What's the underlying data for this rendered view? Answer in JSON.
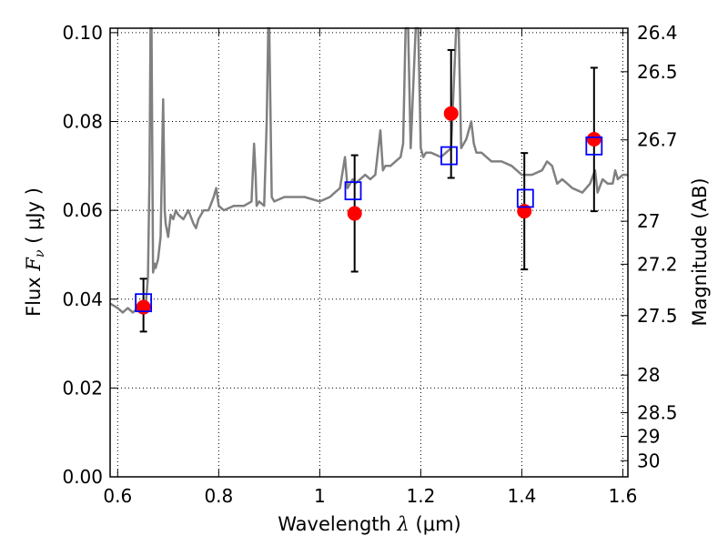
{
  "chart_data": {
    "type": "scatter",
    "title": "",
    "xlabel": {
      "prefix": "Wavelength",
      "symbol": "λ",
      "unit": "(μm)"
    },
    "ylabel": {
      "prefix": "Flux",
      "symbol": "F",
      "subscript": "ν",
      "unit": "( μJy )"
    },
    "ylabel_right": "Magnitude (AB)",
    "xlim": [
      0.585,
      1.61
    ],
    "ylim": [
      0.0,
      0.101
    ],
    "grid": true,
    "x_ticks": [
      0.6,
      0.8,
      1.0,
      1.2,
      1.4,
      1.6
    ],
    "x_tick_labels": [
      "0.6",
      "0.8",
      "1",
      "1.2",
      "1.4",
      "1.6"
    ],
    "y_ticks": [
      0.0,
      0.02,
      0.04,
      0.06,
      0.08,
      0.1
    ],
    "y_tick_labels": [
      "0.00",
      "0.02",
      "0.04",
      "0.06",
      "0.08",
      "0.10"
    ],
    "mag_ticks": [
      26.4,
      26.5,
      26.7,
      27,
      27.2,
      27.5,
      28,
      28.5,
      29,
      30
    ],
    "mag_tick_labels": [
      "26.4",
      "26.5",
      "26.7",
      "27",
      "27.2",
      "27.5",
      "28",
      "28.5",
      "29",
      "30"
    ],
    "mag_zero_point": 23.9,
    "colors": {
      "spectrum": "#808080",
      "observed": "#ff0000",
      "model": "#0000ff",
      "errorbar": "#000000",
      "grid": "#000000"
    },
    "series": [
      {
        "kind": "spectrum",
        "x": [
          0.585,
          0.6,
          0.61,
          0.62,
          0.63,
          0.64,
          0.65,
          0.655,
          0.66,
          0.663,
          0.665,
          0.667,
          0.67,
          0.673,
          0.675,
          0.68,
          0.685,
          0.69,
          0.693,
          0.695,
          0.7,
          0.705,
          0.71,
          0.715,
          0.72,
          0.73,
          0.74,
          0.75,
          0.755,
          0.76,
          0.77,
          0.78,
          0.79,
          0.795,
          0.8,
          0.81,
          0.83,
          0.85,
          0.865,
          0.87,
          0.873,
          0.875,
          0.88,
          0.89,
          0.895,
          0.898,
          0.9,
          0.905,
          0.91,
          0.93,
          0.95,
          0.97,
          1.0,
          1.02,
          1.03,
          1.04,
          1.05,
          1.055,
          1.06,
          1.065,
          1.07,
          1.08,
          1.09,
          1.1,
          1.11,
          1.12,
          1.125,
          1.13,
          1.14,
          1.15,
          1.16,
          1.165,
          1.17,
          1.175,
          1.18,
          1.19,
          1.195,
          1.2,
          1.205,
          1.21,
          1.22,
          1.24,
          1.26,
          1.27,
          1.275,
          1.28,
          1.29,
          1.3,
          1.305,
          1.31,
          1.32,
          1.34,
          1.36,
          1.38,
          1.4,
          1.42,
          1.44,
          1.45,
          1.46,
          1.47,
          1.48,
          1.49,
          1.5,
          1.52,
          1.535,
          1.545,
          1.55,
          1.56,
          1.57,
          1.58,
          1.585,
          1.59,
          1.6,
          1.61
        ],
        "y": [
          0.039,
          0.038,
          0.037,
          0.038,
          0.037,
          0.038,
          0.039,
          0.038,
          0.045,
          0.068,
          0.101,
          0.101,
          0.046,
          0.048,
          0.047,
          0.049,
          0.054,
          0.085,
          0.06,
          0.057,
          0.054,
          0.059,
          0.058,
          0.06,
          0.059,
          0.058,
          0.06,
          0.057,
          0.056,
          0.058,
          0.06,
          0.06,
          0.063,
          0.065,
          0.061,
          0.06,
          0.061,
          0.061,
          0.062,
          0.075,
          0.068,
          0.061,
          0.062,
          0.061,
          0.08,
          0.101,
          0.101,
          0.063,
          0.062,
          0.063,
          0.063,
          0.063,
          0.062,
          0.063,
          0.064,
          0.065,
          0.072,
          0.065,
          0.066,
          0.067,
          0.066,
          0.067,
          0.068,
          0.067,
          0.068,
          0.078,
          0.069,
          0.07,
          0.07,
          0.071,
          0.072,
          0.075,
          0.101,
          0.101,
          0.074,
          0.101,
          0.101,
          0.074,
          0.072,
          0.073,
          0.073,
          0.072,
          0.074,
          0.101,
          0.101,
          0.074,
          0.076,
          0.08,
          0.075,
          0.073,
          0.073,
          0.071,
          0.071,
          0.07,
          0.068,
          0.068,
          0.069,
          0.071,
          0.07,
          0.066,
          0.067,
          0.066,
          0.065,
          0.064,
          0.066,
          0.069,
          0.064,
          0.067,
          0.066,
          0.066,
          0.069,
          0.067,
          0.068,
          0.068
        ]
      },
      {
        "kind": "observed",
        "marker": "circle",
        "x": [
          0.651,
          1.069,
          1.26,
          1.405,
          1.543
        ],
        "y": [
          0.0382,
          0.0593,
          0.0818,
          0.0598,
          0.076
        ],
        "yerr_low": [
          0.0327,
          0.0462,
          0.0673,
          0.0467,
          0.0598
        ],
        "yerr_high": [
          0.0446,
          0.0724,
          0.0961,
          0.0729,
          0.0921
        ]
      },
      {
        "kind": "model",
        "marker": "square",
        "x": [
          0.651,
          1.066,
          1.256,
          1.407,
          1.543
        ],
        "y": [
          0.0392,
          0.0644,
          0.0723,
          0.0627,
          0.0745
        ]
      }
    ]
  }
}
